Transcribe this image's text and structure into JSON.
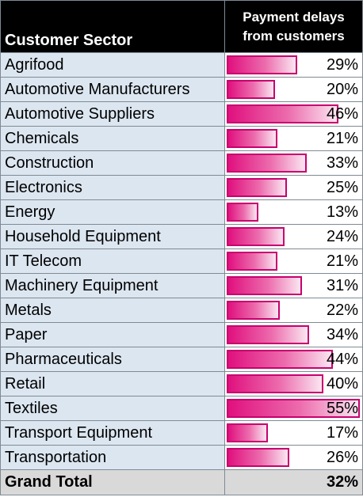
{
  "table": {
    "header_sector": "Customer Sector",
    "header_value_line1": "Payment delays",
    "header_value_line2": "from customers",
    "rows": [
      {
        "sector": "Agrifood",
        "value": "29%",
        "ratio": 0.29
      },
      {
        "sector": "Automotive Manufacturers",
        "value": "20%",
        "ratio": 0.2
      },
      {
        "sector": "Automotive Suppliers",
        "value": "46%",
        "ratio": 0.46
      },
      {
        "sector": "Chemicals",
        "value": "21%",
        "ratio": 0.21
      },
      {
        "sector": "Construction",
        "value": "33%",
        "ratio": 0.33
      },
      {
        "sector": "Electronics",
        "value": "25%",
        "ratio": 0.25
      },
      {
        "sector": "Energy",
        "value": "13%",
        "ratio": 0.13
      },
      {
        "sector": "Household Equipment",
        "value": "24%",
        "ratio": 0.24
      },
      {
        "sector": "IT Telecom",
        "value": "21%",
        "ratio": 0.21
      },
      {
        "sector": "Machinery Equipment",
        "value": "31%",
        "ratio": 0.31
      },
      {
        "sector": "Metals",
        "value": "22%",
        "ratio": 0.22
      },
      {
        "sector": "Paper",
        "value": "34%",
        "ratio": 0.34
      },
      {
        "sector": "Pharmaceuticals",
        "value": "44%",
        "ratio": 0.44
      },
      {
        "sector": "Retail",
        "value": "40%",
        "ratio": 0.4
      },
      {
        "sector": "Textiles",
        "value": "55%",
        "ratio": 0.55
      },
      {
        "sector": "Transport Equipment",
        "value": "17%",
        "ratio": 0.17
      },
      {
        "sector": "Transportation",
        "value": "26%",
        "ratio": 0.26
      }
    ],
    "total_label": "Grand Total",
    "total_value": "32%",
    "bar_max_ratio": 0.55
  },
  "colors": {
    "header_bg": "#000000",
    "row_bg": "#dce6f0",
    "total_bg": "#d9d9d9",
    "bar_accent": "#e0107e"
  }
}
